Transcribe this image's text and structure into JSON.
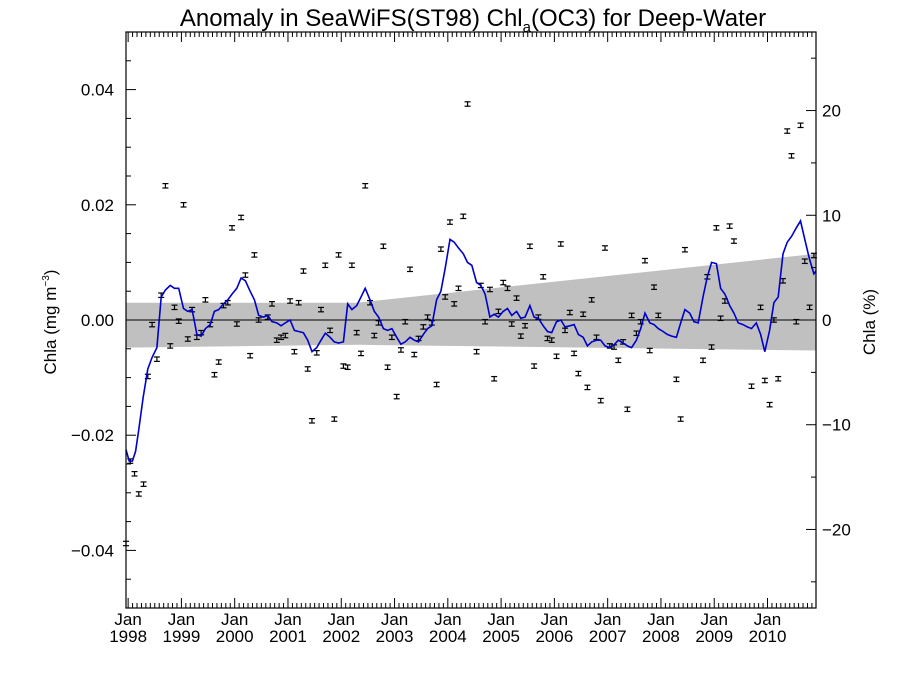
{
  "chart_data": {
    "type": "scatter",
    "title": {
      "pre": "Anomaly in SeaWiFS(ST98) Chl",
      "sub": "a",
      "post": "(OC3) for Deep-Water"
    },
    "ylabel_left": {
      "pre": "Chla (mg m",
      "sup": "−3",
      "post": ")"
    },
    "ylabel_right": "Chla (%)",
    "ylim_left": [
      -0.05,
      0.05
    ],
    "ylim_right": [
      -27.5,
      27.5
    ],
    "yticks_left": [
      "−0.04",
      "−0.02",
      "0.00",
      "0.02",
      "0.04"
    ],
    "yticks_right": [
      "−20",
      "−10",
      "0",
      "10",
      "20"
    ],
    "x_range": [
      1997.96,
      2010.91
    ],
    "x_ticks": [
      {
        "month": "Jan",
        "year": "1998"
      },
      {
        "month": "Jan",
        "year": "1999"
      },
      {
        "month": "Jan",
        "year": "2000"
      },
      {
        "month": "Jan",
        "year": "2001"
      },
      {
        "month": "Jan",
        "year": "2002"
      },
      {
        "month": "Jan",
        "year": "2003"
      },
      {
        "month": "Jan",
        "year": "2004"
      },
      {
        "month": "Jan",
        "year": "2005"
      },
      {
        "month": "Jan",
        "year": "2006"
      },
      {
        "month": "Jan",
        "year": "2007"
      },
      {
        "month": "Jan",
        "year": "2008"
      },
      {
        "month": "Jan",
        "year": "2009"
      },
      {
        "month": "Jan",
        "year": "2010"
      }
    ],
    "colors": {
      "line": "#0000cc",
      "band": "#c0c0c0",
      "points": "#000000"
    },
    "confidence_band": {
      "x": [
        1997.96,
        2002.3,
        2010.91
      ],
      "upper": [
        0.003,
        0.003,
        0.0115
      ],
      "lower": [
        -0.0048,
        -0.0043,
        -0.0053
      ]
    },
    "points": [
      [
        1997.96,
        -0.0388
      ],
      [
        1998.04,
        -0.0245
      ],
      [
        1998.12,
        -0.0267
      ],
      [
        1998.2,
        -0.0302
      ],
      [
        1998.29,
        -0.0285
      ],
      [
        1998.37,
        -0.0098
      ],
      [
        1998.45,
        -0.0008
      ],
      [
        1998.54,
        -0.0068
      ],
      [
        1998.62,
        0.0043
      ],
      [
        1998.7,
        0.0233
      ],
      [
        1998.79,
        -0.0045
      ],
      [
        1998.87,
        0.0022
      ],
      [
        1998.95,
        -0.0002
      ],
      [
        1999.04,
        0.02
      ],
      [
        1999.12,
        -0.0033
      ],
      [
        1999.2,
        0.0018
      ],
      [
        1999.29,
        -0.003
      ],
      [
        1999.37,
        -0.0022
      ],
      [
        1999.45,
        0.0035
      ],
      [
        1999.54,
        -0.0008
      ],
      [
        1999.62,
        -0.0095
      ],
      [
        1999.7,
        -0.0073
      ],
      [
        1999.79,
        0.0025
      ],
      [
        1999.87,
        0.003
      ],
      [
        1999.95,
        0.016
      ],
      [
        2000.04,
        -0.0007
      ],
      [
        2000.12,
        0.0178
      ],
      [
        2000.2,
        0.0078
      ],
      [
        2000.29,
        -0.0062
      ],
      [
        2000.37,
        0.0113
      ],
      [
        2000.45,
        0.0
      ],
      [
        2000.62,
        0.0005
      ],
      [
        2000.7,
        0.0028
      ],
      [
        2000.79,
        -0.0035
      ],
      [
        2000.87,
        -0.003
      ],
      [
        2000.95,
        -0.0027
      ],
      [
        2001.04,
        0.0033
      ],
      [
        2001.12,
        -0.0055
      ],
      [
        2001.2,
        0.003
      ],
      [
        2001.29,
        0.0085
      ],
      [
        2001.37,
        -0.0085
      ],
      [
        2001.45,
        -0.0175
      ],
      [
        2001.54,
        -0.0057
      ],
      [
        2001.62,
        0.0018
      ],
      [
        2001.7,
        0.0095
      ],
      [
        2001.79,
        -0.0018
      ],
      [
        2001.87,
        -0.0172
      ],
      [
        2001.95,
        0.0113
      ],
      [
        2002.04,
        -0.008
      ],
      [
        2002.12,
        -0.0082
      ],
      [
        2002.2,
        0.0095
      ],
      [
        2002.29,
        -0.0022
      ],
      [
        2002.37,
        -0.0058
      ],
      [
        2002.45,
        0.0233
      ],
      [
        2002.54,
        0.003
      ],
      [
        2002.62,
        -0.0027
      ],
      [
        2002.7,
        -0.0005
      ],
      [
        2002.79,
        0.0128
      ],
      [
        2002.87,
        -0.0082
      ],
      [
        2002.95,
        -0.003
      ],
      [
        2003.04,
        -0.0133
      ],
      [
        2003.12,
        -0.0052
      ],
      [
        2003.2,
        -0.0003
      ],
      [
        2003.29,
        0.0088
      ],
      [
        2003.37,
        -0.006
      ],
      [
        2003.45,
        -0.0032
      ],
      [
        2003.54,
        -0.0012
      ],
      [
        2003.62,
        0.0005
      ],
      [
        2003.7,
        -0.0005
      ],
      [
        2003.79,
        -0.0112
      ],
      [
        2003.87,
        0.0123
      ],
      [
        2003.95,
        0.004
      ],
      [
        2004.04,
        0.017
      ],
      [
        2004.12,
        0.0028
      ],
      [
        2004.2,
        0.0055
      ],
      [
        2004.29,
        0.018
      ],
      [
        2004.37,
        0.0375
      ],
      [
        2004.54,
        -0.0055
      ],
      [
        2004.62,
        0.006
      ],
      [
        2004.7,
        -0.0003
      ],
      [
        2004.79,
        0.0053
      ],
      [
        2004.87,
        -0.0102
      ],
      [
        2004.95,
        0.0015
      ],
      [
        2005.04,
        0.0065
      ],
      [
        2005.12,
        0.0055
      ],
      [
        2005.2,
        -0.0007
      ],
      [
        2005.29,
        0.0038
      ],
      [
        2005.37,
        -0.0028
      ],
      [
        2005.45,
        -0.001
      ],
      [
        2005.54,
        0.0128
      ],
      [
        2005.62,
        -0.008
      ],
      [
        2005.7,
        0.0005
      ],
      [
        2005.79,
        0.0075
      ],
      [
        2005.87,
        -0.0032
      ],
      [
        2005.95,
        -0.0035
      ],
      [
        2006.04,
        -0.0063
      ],
      [
        2006.12,
        0.0132
      ],
      [
        2006.2,
        -0.0018
      ],
      [
        2006.29,
        0.0013
      ],
      [
        2006.37,
        -0.0058
      ],
      [
        2006.45,
        -0.0093
      ],
      [
        2006.54,
        0.001
      ],
      [
        2006.62,
        -0.0117
      ],
      [
        2006.7,
        0.0035
      ],
      [
        2006.79,
        -0.003
      ],
      [
        2006.87,
        -0.014
      ],
      [
        2006.95,
        0.0125
      ],
      [
        2007.04,
        -0.0045
      ],
      [
        2007.12,
        -0.0047
      ],
      [
        2007.2,
        -0.007
      ],
      [
        2007.29,
        -0.0038
      ],
      [
        2007.37,
        -0.0155
      ],
      [
        2007.45,
        0.0008
      ],
      [
        2007.54,
        -0.0023
      ],
      [
        2007.62,
        -0.0003
      ],
      [
        2007.7,
        0.0103
      ],
      [
        2007.79,
        -0.0053
      ],
      [
        2007.87,
        0.0057
      ],
      [
        2007.95,
        0.0008
      ],
      [
        2008.29,
        -0.0103
      ],
      [
        2008.37,
        -0.0172
      ],
      [
        2008.45,
        0.0122
      ],
      [
        2008.79,
        -0.007
      ],
      [
        2008.87,
        0.0075
      ],
      [
        2008.95,
        -0.0047
      ],
      [
        2009.04,
        0.016
      ],
      [
        2009.12,
        0.0003
      ],
      [
        2009.2,
        0.0033
      ],
      [
        2009.29,
        0.0163
      ],
      [
        2009.37,
        0.0137
      ],
      [
        2009.7,
        -0.0115
      ],
      [
        2009.87,
        0.0022
      ],
      [
        2009.95,
        -0.0105
      ],
      [
        2010.04,
        -0.0147
      ],
      [
        2010.12,
        0.0
      ],
      [
        2010.2,
        -0.0102
      ],
      [
        2010.29,
        0.0068
      ],
      [
        2010.37,
        0.0328
      ],
      [
        2010.45,
        0.0285
      ],
      [
        2010.54,
        -0.0003
      ],
      [
        2010.62,
        0.0338
      ],
      [
        2010.7,
        0.0102
      ],
      [
        2010.79,
        0.0022
      ],
      [
        2010.87,
        0.0112
      ]
    ],
    "running_mean": [
      [
        1997.96,
        -0.0225
      ],
      [
        1998.02,
        -0.0245
      ],
      [
        1998.08,
        -0.0245
      ],
      [
        1998.14,
        -0.0228
      ],
      [
        1998.2,
        -0.019
      ],
      [
        1998.28,
        -0.0135
      ],
      [
        1998.37,
        -0.0085
      ],
      [
        1998.45,
        -0.0065
      ],
      [
        1998.54,
        -0.0048
      ],
      [
        1998.62,
        0.004
      ],
      [
        1998.7,
        0.0052
      ],
      [
        1998.79,
        0.006
      ],
      [
        1998.87,
        0.0055
      ],
      [
        1998.95,
        0.0055
      ],
      [
        1999.04,
        0.002
      ],
      [
        1999.12,
        0.0015
      ],
      [
        1999.2,
        0.0018
      ],
      [
        1999.29,
        -0.0025
      ],
      [
        1999.37,
        -0.0028
      ],
      [
        1999.45,
        -0.0015
      ],
      [
        1999.54,
        -0.0008
      ],
      [
        1999.62,
        0.0015
      ],
      [
        1999.7,
        0.0018
      ],
      [
        1999.79,
        0.0028
      ],
      [
        1999.87,
        0.0035
      ],
      [
        1999.95,
        0.0045
      ],
      [
        2000.04,
        0.0055
      ],
      [
        2000.12,
        0.0073
      ],
      [
        2000.2,
        0.0068
      ],
      [
        2000.29,
        0.005
      ],
      [
        2000.37,
        0.0035
      ],
      [
        2000.45,
        0.0008
      ],
      [
        2000.54,
        0.0005
      ],
      [
        2000.62,
        0.0008
      ],
      [
        2000.7,
        -0.0003
      ],
      [
        2000.79,
        -0.0005
      ],
      [
        2000.87,
        -0.001
      ],
      [
        2000.95,
        -0.0005
      ],
      [
        2001.04,
        0.0
      ],
      [
        2001.12,
        -0.0018
      ],
      [
        2001.2,
        -0.002
      ],
      [
        2001.29,
        -0.0022
      ],
      [
        2001.37,
        -0.0035
      ],
      [
        2001.45,
        -0.0055
      ],
      [
        2001.54,
        -0.0048
      ],
      [
        2001.62,
        -0.0035
      ],
      [
        2001.7,
        -0.0023
      ],
      [
        2001.79,
        -0.003
      ],
      [
        2001.87,
        -0.0038
      ],
      [
        2001.95,
        -0.004
      ],
      [
        2002.04,
        -0.0038
      ],
      [
        2002.12,
        0.0028
      ],
      [
        2002.2,
        0.0018
      ],
      [
        2002.29,
        0.0025
      ],
      [
        2002.37,
        0.004
      ],
      [
        2002.45,
        0.0055
      ],
      [
        2002.54,
        0.0035
      ],
      [
        2002.62,
        0.0015
      ],
      [
        2002.7,
        0.0005
      ],
      [
        2002.79,
        -0.0015
      ],
      [
        2002.87,
        -0.0018
      ],
      [
        2002.95,
        -0.0015
      ],
      [
        2003.04,
        -0.003
      ],
      [
        2003.12,
        -0.0042
      ],
      [
        2003.2,
        -0.0038
      ],
      [
        2003.29,
        -0.003
      ],
      [
        2003.37,
        -0.0035
      ],
      [
        2003.45,
        -0.0038
      ],
      [
        2003.54,
        -0.0025
      ],
      [
        2003.62,
        -0.0015
      ],
      [
        2003.7,
        -0.001
      ],
      [
        2003.79,
        0.0035
      ],
      [
        2003.87,
        0.005
      ],
      [
        2003.95,
        0.009
      ],
      [
        2004.04,
        0.014
      ],
      [
        2004.12,
        0.0135
      ],
      [
        2004.2,
        0.0125
      ],
      [
        2004.29,
        0.0115
      ],
      [
        2004.37,
        0.01
      ],
      [
        2004.45,
        0.0095
      ],
      [
        2004.54,
        0.0065
      ],
      [
        2004.62,
        0.006
      ],
      [
        2004.7,
        0.0045
      ],
      [
        2004.79,
        0.0005
      ],
      [
        2004.87,
        0.001
      ],
      [
        2004.95,
        0.0005
      ],
      [
        2005.04,
        0.0015
      ],
      [
        2005.12,
        0.002
      ],
      [
        2005.2,
        0.0008
      ],
      [
        2005.29,
        0.0015
      ],
      [
        2005.37,
        0.0003
      ],
      [
        2005.45,
        0.0005
      ],
      [
        2005.54,
        0.0025
      ],
      [
        2005.62,
        0.0005
      ],
      [
        2005.7,
        0.0003
      ],
      [
        2005.79,
        -0.001
      ],
      [
        2005.87,
        -0.002
      ],
      [
        2005.95,
        -0.0022
      ],
      [
        2006.04,
        -0.0003
      ],
      [
        2006.12,
        0.0
      ],
      [
        2006.2,
        -0.0012
      ],
      [
        2006.29,
        -0.001
      ],
      [
        2006.37,
        -0.0008
      ],
      [
        2006.45,
        -0.0025
      ],
      [
        2006.54,
        -0.003
      ],
      [
        2006.62,
        -0.0045
      ],
      [
        2006.7,
        -0.0038
      ],
      [
        2006.79,
        -0.0035
      ],
      [
        2006.87,
        -0.0035
      ],
      [
        2006.95,
        -0.0045
      ],
      [
        2007.04,
        -0.0048
      ],
      [
        2007.12,
        -0.0043
      ],
      [
        2007.2,
        -0.0035
      ],
      [
        2007.29,
        -0.004
      ],
      [
        2007.37,
        -0.0045
      ],
      [
        2007.45,
        -0.0048
      ],
      [
        2007.54,
        -0.0035
      ],
      [
        2007.62,
        -0.0015
      ],
      [
        2007.7,
        0.0012
      ],
      [
        2007.79,
        -0.0005
      ],
      [
        2007.87,
        -0.0008
      ],
      [
        2007.95,
        -0.0015
      ],
      [
        2008.04,
        -0.002
      ],
      [
        2008.12,
        -0.0025
      ],
      [
        2008.2,
        -0.0028
      ],
      [
        2008.29,
        -0.003
      ],
      [
        2008.37,
        -0.0005
      ],
      [
        2008.45,
        0.0018
      ],
      [
        2008.54,
        0.0012
      ],
      [
        2008.62,
        -0.0003
      ],
      [
        2008.7,
        -0.0005
      ],
      [
        2008.79,
        0.004
      ],
      [
        2008.87,
        0.0075
      ],
      [
        2008.95,
        0.01
      ],
      [
        2009.04,
        0.0098
      ],
      [
        2009.12,
        0.0055
      ],
      [
        2009.2,
        0.0045
      ],
      [
        2009.29,
        0.0025
      ],
      [
        2009.37,
        0.0012
      ],
      [
        2009.45,
        -0.0005
      ],
      [
        2009.54,
        -0.0008
      ],
      [
        2009.62,
        -0.0012
      ],
      [
        2009.7,
        -0.0015
      ],
      [
        2009.79,
        -0.0005
      ],
      [
        2009.87,
        -0.0025
      ],
      [
        2009.95,
        -0.0055
      ],
      [
        2010.04,
        -0.0018
      ],
      [
        2010.12,
        0.003
      ],
      [
        2010.2,
        0.004
      ],
      [
        2010.29,
        0.0115
      ],
      [
        2010.37,
        0.0135
      ],
      [
        2010.45,
        0.0145
      ],
      [
        2010.54,
        0.016
      ],
      [
        2010.62,
        0.0172
      ],
      [
        2010.7,
        0.014
      ],
      [
        2010.79,
        0.0105
      ],
      [
        2010.87,
        0.008
      ],
      [
        2010.91,
        0.0085
      ]
    ],
    "grid": false,
    "legend": "none"
  }
}
